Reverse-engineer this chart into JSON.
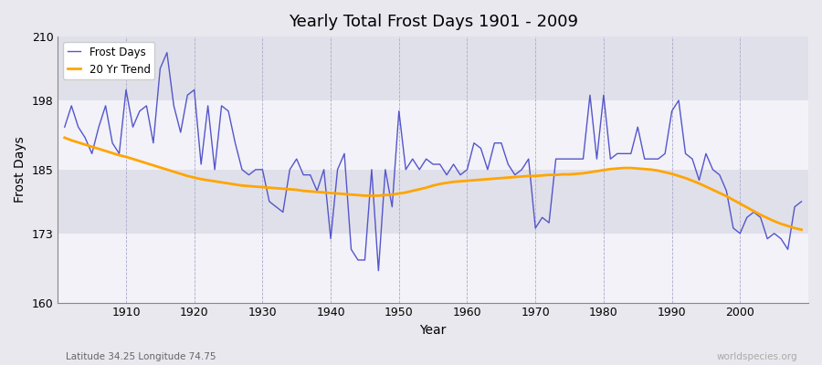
{
  "title": "Yearly Total Frost Days 1901 - 2009",
  "xlabel": "Year",
  "ylabel": "Frost Days",
  "footnote_left": "Latitude 34.25 Longitude 74.75",
  "footnote_right": "worldspecies.org",
  "legend_labels": [
    "Frost Days",
    "20 Yr Trend"
  ],
  "line_color": "#5555cc",
  "trend_color": "#FFA500",
  "bg_color": "#e8e8ee",
  "band_colors": [
    "#f0f0f5",
    "#dcdce8"
  ],
  "ylim": [
    160,
    210
  ],
  "yticks": [
    160,
    173,
    185,
    198,
    210
  ],
  "years": [
    1901,
    1902,
    1903,
    1904,
    1905,
    1906,
    1907,
    1908,
    1909,
    1910,
    1911,
    1912,
    1913,
    1914,
    1915,
    1916,
    1917,
    1918,
    1919,
    1920,
    1921,
    1922,
    1923,
    1924,
    1925,
    1926,
    1927,
    1928,
    1929,
    1930,
    1931,
    1932,
    1933,
    1934,
    1935,
    1936,
    1937,
    1938,
    1939,
    1940,
    1941,
    1942,
    1943,
    1944,
    1945,
    1946,
    1947,
    1948,
    1949,
    1950,
    1951,
    1952,
    1953,
    1954,
    1955,
    1956,
    1957,
    1958,
    1959,
    1960,
    1961,
    1962,
    1963,
    1964,
    1965,
    1966,
    1967,
    1968,
    1969,
    1970,
    1971,
    1972,
    1973,
    1974,
    1975,
    1976,
    1977,
    1978,
    1979,
    1980,
    1981,
    1982,
    1983,
    1984,
    1985,
    1986,
    1987,
    1988,
    1989,
    1990,
    1991,
    1992,
    1993,
    1994,
    1995,
    1996,
    1997,
    1998,
    1999,
    2000,
    2001,
    2002,
    2003,
    2004,
    2005,
    2006,
    2007,
    2008,
    2009
  ],
  "frost_days": [
    193,
    197,
    193,
    191,
    188,
    193,
    197,
    190,
    188,
    200,
    193,
    196,
    197,
    190,
    204,
    207,
    197,
    192,
    199,
    200,
    186,
    197,
    185,
    197,
    196,
    190,
    185,
    184,
    185,
    185,
    179,
    178,
    177,
    185,
    187,
    184,
    184,
    181,
    185,
    172,
    185,
    188,
    170,
    168,
    168,
    185,
    166,
    185,
    178,
    196,
    185,
    187,
    185,
    187,
    186,
    186,
    184,
    186,
    184,
    185,
    190,
    189,
    185,
    190,
    190,
    186,
    184,
    185,
    187,
    174,
    176,
    175,
    187,
    187,
    187,
    187,
    187,
    199,
    187,
    199,
    187,
    188,
    188,
    188,
    193,
    187,
    187,
    187,
    188,
    196,
    198,
    188,
    187,
    183,
    188,
    185,
    184,
    181,
    174,
    173,
    176,
    177,
    176,
    172,
    173,
    172,
    170,
    178,
    179
  ],
  "trend_years": [
    1901,
    1902,
    1903,
    1904,
    1905,
    1906,
    1907,
    1908,
    1909,
    1910,
    1911,
    1912,
    1913,
    1914,
    1915,
    1916,
    1917,
    1918,
    1919,
    1920,
    1921,
    1922,
    1923,
    1924,
    1925,
    1926,
    1927,
    1928,
    1929,
    1930,
    1931,
    1932,
    1933,
    1934,
    1935,
    1936,
    1937,
    1938,
    1939,
    1940,
    1941,
    1942,
    1943,
    1944,
    1945,
    1946,
    1947,
    1948,
    1949,
    1950,
    1951,
    1952,
    1953,
    1954,
    1955,
    1956,
    1957,
    1958,
    1959,
    1960,
    1961,
    1962,
    1963,
    1964,
    1965,
    1966,
    1967,
    1968,
    1969,
    1970,
    1971,
    1972,
    1973,
    1974,
    1975,
    1976,
    1977,
    1978,
    1979,
    1980,
    1981,
    1982,
    1983,
    1984,
    1985,
    1986,
    1987,
    1988,
    1989,
    1990,
    1991,
    1992,
    1993,
    1994,
    1995,
    1996,
    1997,
    1998,
    1999,
    2000,
    2001,
    2002,
    2003,
    2004,
    2005,
    2006,
    2007,
    2008,
    2009
  ],
  "trend_vals": [
    191.0,
    190.5,
    190.1,
    189.7,
    189.3,
    188.9,
    188.5,
    188.1,
    187.7,
    187.4,
    187.0,
    186.6,
    186.2,
    185.8,
    185.4,
    185.0,
    184.6,
    184.2,
    183.8,
    183.5,
    183.2,
    183.0,
    182.8,
    182.6,
    182.4,
    182.2,
    182.0,
    181.9,
    181.8,
    181.7,
    181.6,
    181.5,
    181.4,
    181.3,
    181.2,
    181.0,
    180.9,
    180.8,
    180.7,
    180.6,
    180.5,
    180.4,
    180.3,
    180.2,
    180.1,
    180.1,
    180.1,
    180.2,
    180.3,
    180.5,
    180.7,
    181.0,
    181.3,
    181.6,
    182.0,
    182.3,
    182.5,
    182.7,
    182.8,
    182.9,
    183.0,
    183.1,
    183.2,
    183.3,
    183.4,
    183.5,
    183.6,
    183.7,
    183.8,
    183.8,
    183.9,
    184.0,
    184.0,
    184.1,
    184.1,
    184.2,
    184.3,
    184.5,
    184.7,
    184.9,
    185.1,
    185.2,
    185.3,
    185.3,
    185.2,
    185.1,
    185.0,
    184.8,
    184.5,
    184.2,
    183.8,
    183.4,
    182.9,
    182.4,
    181.8,
    181.2,
    180.6,
    180.0,
    179.3,
    178.6,
    177.9,
    177.2,
    176.5,
    175.9,
    175.3,
    174.8,
    174.4,
    174.0,
    173.7
  ]
}
